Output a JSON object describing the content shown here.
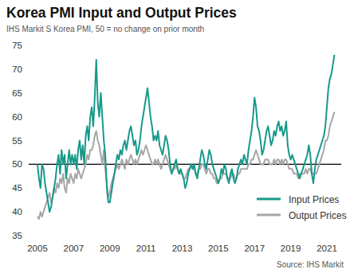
{
  "chart_data": {
    "type": "line",
    "title": "Korea PMI Input and Output Prices",
    "subtitle": "IHS Markit S Korea PMI, 50 = no change on prior month",
    "source": "Source: IHS Markit",
    "categories": [
      "2005",
      null,
      null,
      null,
      null,
      null,
      null,
      null,
      null,
      null,
      null,
      null,
      null,
      null,
      null,
      null,
      null,
      null,
      null,
      null,
      null,
      null,
      null,
      null,
      "2007",
      null,
      null,
      null,
      null,
      null,
      null,
      null,
      null,
      null,
      null,
      null,
      null,
      null,
      null,
      null,
      null,
      null,
      null,
      null,
      null,
      null,
      null,
      null,
      "2009",
      null,
      null,
      null,
      null,
      null,
      null,
      null,
      null,
      null,
      null,
      null,
      null,
      null,
      null,
      null,
      null,
      null,
      null,
      null,
      null,
      null,
      null,
      null,
      "2011",
      null,
      null,
      null,
      null,
      null,
      null,
      null,
      null,
      null,
      null,
      null,
      null,
      null,
      null,
      null,
      null,
      null,
      null,
      null,
      null,
      null,
      null,
      null,
      "2013",
      null,
      null,
      null,
      null,
      null,
      null,
      null,
      null,
      null,
      null,
      null,
      null,
      null,
      null,
      null,
      null,
      null,
      null,
      null,
      null,
      null,
      null,
      null,
      "2015",
      null,
      null,
      null,
      null,
      null,
      null,
      null,
      null,
      null,
      null,
      null,
      null,
      null,
      null,
      null,
      null,
      null,
      null,
      null,
      null,
      null,
      null,
      null,
      "2017",
      null,
      null,
      null,
      null,
      null,
      null,
      null,
      null,
      null,
      null,
      null,
      null,
      null,
      null,
      null,
      null,
      null,
      null,
      null,
      null,
      null,
      null,
      null,
      "2019",
      null,
      null,
      null,
      null,
      null,
      null,
      null,
      null,
      null,
      null,
      null,
      null,
      null,
      null,
      null,
      null,
      null,
      null,
      null,
      null,
      null,
      null,
      null,
      "2021",
      null,
      null,
      null,
      null,
      null
    ],
    "series": [
      {
        "name": "Input Prices",
        "color": "#17998a",
        "values": [
          50,
          47,
          45,
          50,
          49,
          46,
          44,
          42,
          40,
          41,
          43,
          45,
          47,
          50,
          52,
          48,
          53,
          50,
          52,
          47,
          50,
          53,
          50,
          52,
          50,
          52,
          49,
          53,
          55,
          51,
          54,
          50,
          56,
          58,
          55,
          60,
          62,
          58,
          64,
          72,
          63,
          60,
          65,
          60,
          55,
          52,
          45,
          42,
          42,
          44,
          46,
          48,
          50,
          52,
          51,
          53,
          52,
          54,
          55,
          53,
          55,
          57,
          58,
          56,
          54,
          55,
          52,
          53,
          55,
          58,
          60,
          62,
          64,
          66,
          63,
          60,
          58,
          55,
          56,
          55,
          57,
          54,
          53,
          52,
          54,
          56,
          55,
          53,
          50,
          48,
          49,
          50,
          51,
          49,
          48,
          49,
          48,
          47,
          45,
          46,
          48,
          49,
          50,
          49,
          50,
          48,
          47,
          49,
          51,
          53,
          52,
          50,
          49,
          51,
          53,
          52,
          50,
          49,
          48,
          47,
          46,
          47,
          49,
          48,
          50,
          49,
          47,
          46,
          48,
          49,
          47,
          46,
          47,
          49,
          50,
          51,
          50,
          52,
          51,
          50,
          53,
          55,
          57,
          60,
          64,
          62,
          58,
          57,
          55,
          52,
          53,
          55,
          57,
          58,
          56,
          54,
          55,
          57,
          56,
          58,
          59,
          57,
          58,
          56,
          57,
          59,
          54,
          52,
          51,
          52,
          51,
          50,
          49,
          48,
          47,
          48,
          49,
          50,
          51,
          52,
          54,
          52,
          48,
          46,
          49,
          51,
          52,
          53,
          54,
          55,
          56,
          58,
          62,
          66,
          68,
          69,
          71,
          73
        ]
      },
      {
        "name": "Output Prices",
        "color": "#a6a6a6",
        "values": [
          39,
          38.5,
          40,
          39,
          40,
          41,
          42,
          43,
          44,
          42,
          43,
          45,
          44,
          46,
          45,
          47,
          46,
          48,
          45,
          44,
          47,
          46,
          48,
          47,
          46,
          48,
          47,
          49,
          48,
          47,
          48,
          49,
          50,
          52,
          51,
          53,
          53,
          54,
          56,
          57,
          55,
          54,
          52,
          50,
          53,
          49,
          46,
          43,
          44,
          46,
          47,
          48,
          49,
          50,
          49,
          50,
          51,
          50,
          49,
          51,
          50,
          51,
          52,
          51,
          50,
          51,
          50,
          51,
          52,
          53,
          52,
          53,
          54,
          53,
          52,
          51,
          50,
          50,
          51,
          50,
          51,
          50,
          49,
          50,
          51,
          52,
          51,
          50,
          49,
          48,
          49,
          49,
          50,
          49,
          48,
          48,
          48,
          47,
          47,
          48,
          49,
          49,
          50,
          49,
          49,
          48,
          48,
          49,
          49,
          50,
          50,
          49,
          48,
          49,
          49,
          48,
          48,
          47,
          47,
          46,
          46,
          47,
          47,
          48,
          48,
          48,
          47,
          47,
          47,
          48,
          48,
          47,
          47,
          48,
          48,
          49,
          49,
          49,
          49,
          49,
          50,
          50,
          51,
          51,
          52,
          53,
          52,
          51,
          50,
          50,
          50,
          51,
          51,
          51,
          50,
          50,
          50,
          51,
          50,
          51,
          51,
          50,
          51,
          50,
          51,
          51,
          50,
          49,
          49,
          49,
          48,
          48,
          48,
          47,
          48,
          48,
          48,
          48,
          49,
          48,
          49,
          49,
          48,
          48,
          48,
          48,
          49,
          50,
          51,
          52,
          53,
          55,
          55,
          56,
          58,
          59,
          60,
          61
        ]
      }
    ],
    "reference_line": 50,
    "ylim": [
      35,
      75
    ],
    "yticks": [
      35,
      40,
      45,
      50,
      55,
      60,
      65,
      70,
      75
    ],
    "grid": false,
    "legend": "lower right"
  }
}
